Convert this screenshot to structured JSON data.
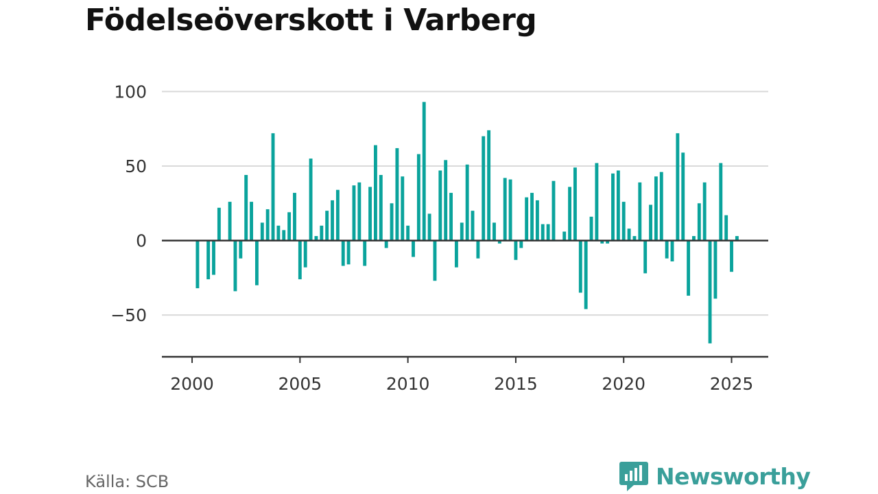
{
  "title": "Födelseöverskott i Varberg",
  "source": "Källa: SCB",
  "brand": {
    "name": "Newsworthy",
    "icon": "newsworthy-logo-icon",
    "color": "#3a9f9a"
  },
  "colors": {
    "bar": "#0aa39c",
    "grid": "#d9d9d9",
    "axis": "#333333"
  },
  "chart_data": {
    "type": "bar",
    "title": "Födelseöverskott i Varberg",
    "xlabel": "",
    "ylabel": "",
    "ylim": [
      -78,
      108
    ],
    "xlim": [
      1998.6,
      2026.7
    ],
    "grid": true,
    "legend": "none",
    "xticks": [
      2000,
      2005,
      2010,
      2015,
      2020,
      2025
    ],
    "yticks": [
      100,
      50,
      0,
      -50
    ],
    "ytick_labels": [
      "100",
      "50",
      "0",
      "−50"
    ],
    "x": [
      2000.0,
      2000.25,
      2000.5,
      2000.75,
      2001.0,
      2001.25,
      2001.5,
      2001.75,
      2002.0,
      2002.25,
      2002.5,
      2002.75,
      2003.0,
      2003.25,
      2003.5,
      2003.75,
      2004.0,
      2004.25,
      2004.5,
      2004.75,
      2005.0,
      2005.25,
      2005.5,
      2005.75,
      2006.0,
      2006.25,
      2006.5,
      2006.75,
      2007.0,
      2007.25,
      2007.5,
      2007.75,
      2008.0,
      2008.25,
      2008.5,
      2008.75,
      2009.0,
      2009.25,
      2009.5,
      2009.75,
      2010.0,
      2010.25,
      2010.5,
      2010.75,
      2011.0,
      2011.25,
      2011.5,
      2011.75,
      2012.0,
      2012.25,
      2012.5,
      2012.75,
      2013.0,
      2013.25,
      2013.5,
      2013.75,
      2014.0,
      2014.25,
      2014.5,
      2014.75,
      2015.0,
      2015.25,
      2015.5,
      2015.75,
      2016.0,
      2016.25,
      2016.5,
      2016.75,
      2017.0,
      2017.25,
      2017.5,
      2017.75,
      2018.0,
      2018.25,
      2018.5,
      2018.75,
      2019.0,
      2019.25,
      2019.5,
      2019.75,
      2020.0,
      2020.25,
      2020.5,
      2020.75,
      2021.0,
      2021.25,
      2021.5,
      2021.75,
      2022.0,
      2022.25,
      2022.5,
      2022.75,
      2023.0,
      2023.25,
      2023.5,
      2023.75,
      2024.0,
      2024.25,
      2024.5,
      2024.75,
      2025.0,
      2025.25
    ],
    "values": [
      0,
      -32,
      0,
      -26,
      -23,
      22,
      0,
      26,
      -34,
      -12,
      44,
      26,
      -30,
      12,
      21,
      72,
      10,
      7,
      19,
      32,
      -26,
      -18,
      55,
      3,
      10,
      20,
      27,
      34,
      -17,
      -16,
      37,
      39,
      -17,
      36,
      64,
      44,
      -5,
      25,
      62,
      43,
      10,
      -11,
      58,
      93,
      18,
      -27,
      47,
      54,
      32,
      -18,
      12,
      51,
      20,
      -12,
      70,
      74,
      12,
      -2,
      42,
      41,
      -13,
      -5,
      29,
      32,
      27,
      11,
      11,
      40,
      0,
      6,
      36,
      49,
      -35,
      -46,
      16,
      52,
      -2,
      -2,
      45,
      47,
      26,
      8,
      3,
      39,
      -22,
      24,
      43,
      46,
      -12,
      -14,
      72,
      59,
      -37,
      3,
      25,
      39,
      -69,
      -39,
      52,
      17,
      -21,
      3
    ]
  }
}
